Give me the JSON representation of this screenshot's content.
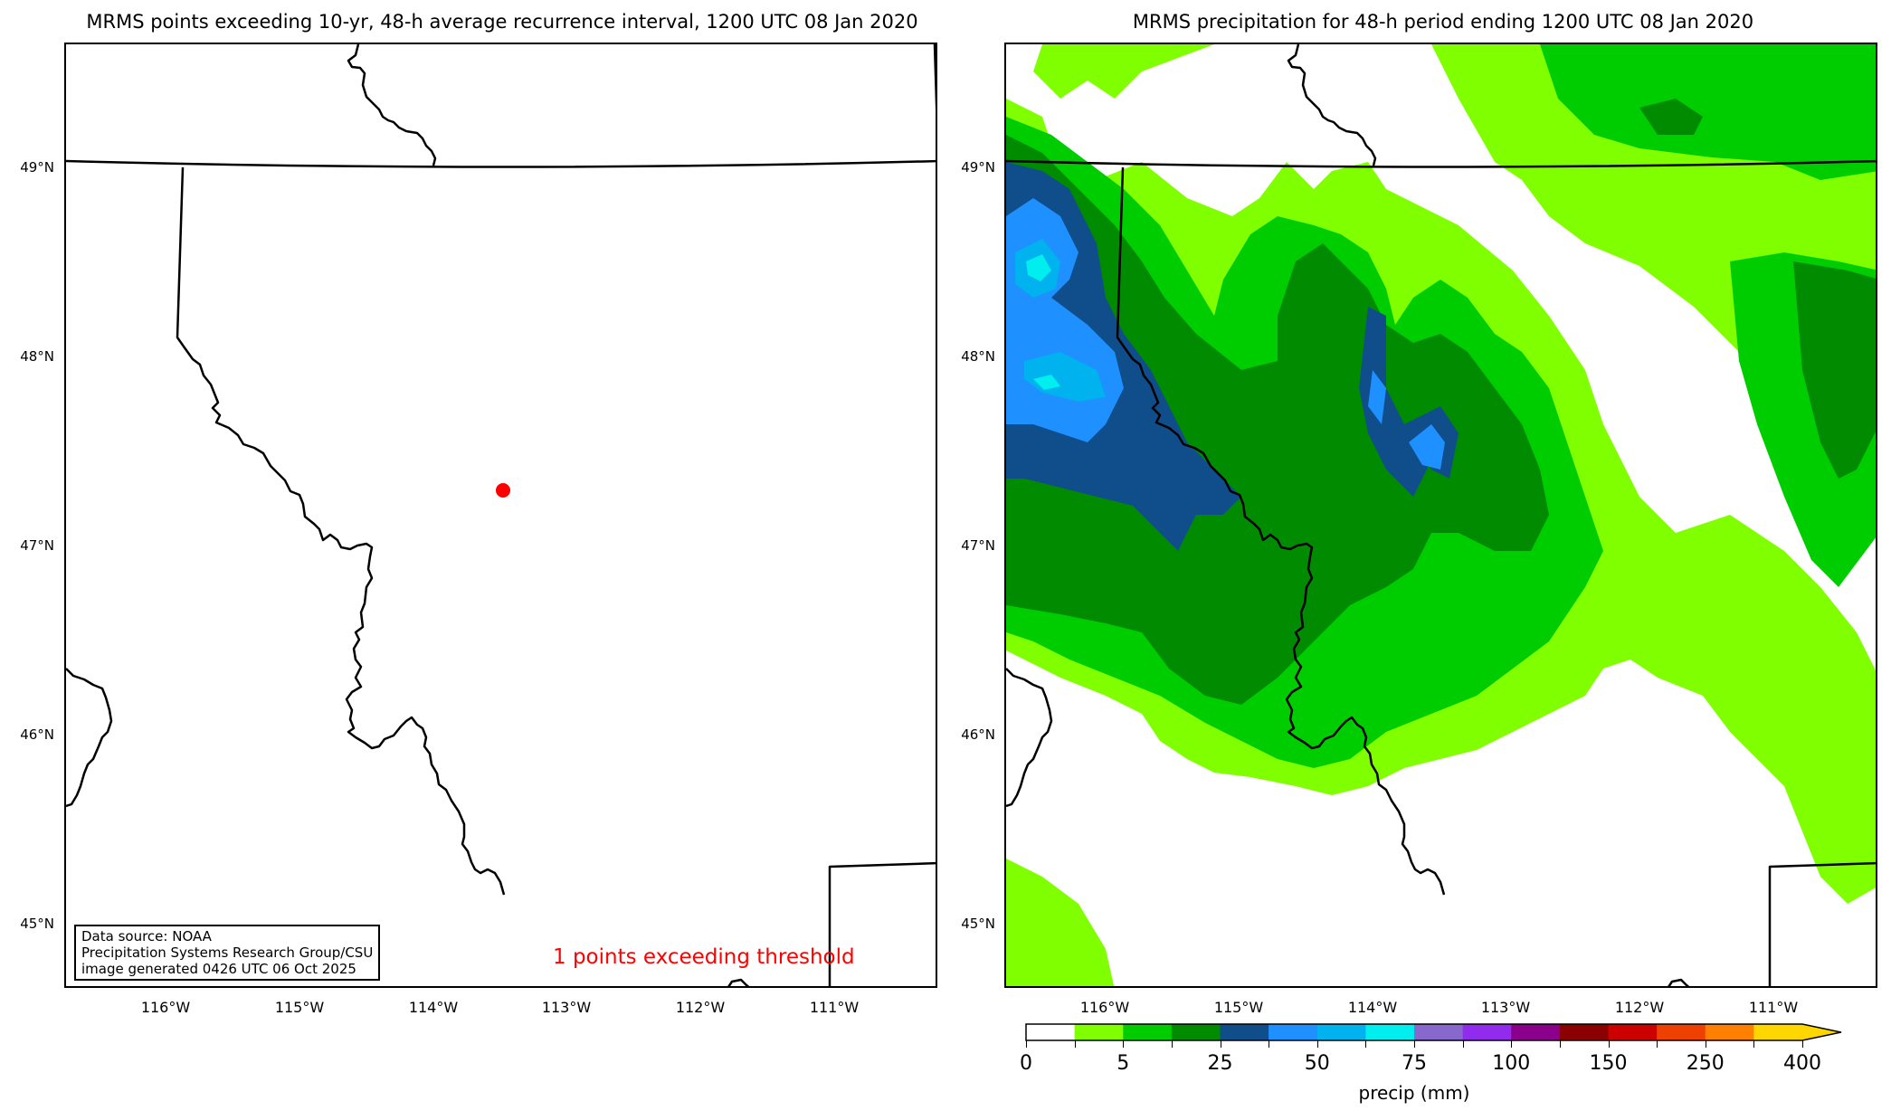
{
  "left_panel": {
    "title": "MRMS points exceeding 10-yr, 48-h average recurrence interval, 1200 UTC 08 Jan 2020",
    "info_box": {
      "line1": "Data source: NOAA",
      "line2": "Precipitation Systems Research Group/CSU",
      "line3": "image generated 0426 UTC 06 Oct 2025"
    },
    "exceed_note": "1 points exceeding threshold",
    "point_color": "#ff0000"
  },
  "right_panel": {
    "title": "MRMS precipitation for 48-h period ending 1200 UTC 08 Jan 2020"
  },
  "axes": {
    "lat_labels": [
      "49°N",
      "48°N",
      "47°N",
      "46°N",
      "45°N"
    ],
    "lon_labels": [
      "116°W",
      "115°W",
      "114°W",
      "113°W",
      "112°W",
      "111°W"
    ]
  },
  "colorbar": {
    "label": "precip (mm)",
    "tick_labels": [
      "0",
      "5",
      "25",
      "50",
      "75",
      "100",
      "150",
      "250",
      "400"
    ],
    "colors": [
      "#ffffff",
      "#7fff00",
      "#00cd00",
      "#008b00",
      "#104e8b",
      "#1e90ff",
      "#00b2ee",
      "#00eeee",
      "#8968cd",
      "#912cee",
      "#8b008b",
      "#8b0000",
      "#cd0000",
      "#ee4000",
      "#ff7f00",
      "#ffd700"
    ]
  },
  "chart_data": [
    {
      "type": "scatter",
      "title": "MRMS points exceeding 10-yr, 48-h average recurrence interval, 1200 UTC 08 Jan 2020",
      "xlabel": "longitude",
      "ylabel": "latitude",
      "xlim": [
        -116.75,
        -110.3
      ],
      "ylim": [
        44.7,
        49.65
      ],
      "points": [
        {
          "lon": -113.5,
          "lat": 47.12
        }
      ],
      "annotation": "1 points exceeding threshold"
    },
    {
      "type": "heatmap",
      "title": "MRMS precipitation for 48-h period ending 1200 UTC 08 Jan 2020",
      "colorbar_label": "precip (mm)",
      "levels_labeled": [
        0,
        5,
        25,
        50,
        75,
        100,
        150,
        250,
        400
      ],
      "xlim": [
        -116.75,
        -110.3
      ],
      "ylim": [
        44.7,
        49.65
      ],
      "note": "Heaviest totals (50-75 mm) in northern Idaho panhandle near 116.5°W 47.5-48.5°N; 25-50 mm band along Bitterroot and western Montana ranges; lighter 2.5-10 mm across southern Alberta and eastern plains"
    }
  ]
}
